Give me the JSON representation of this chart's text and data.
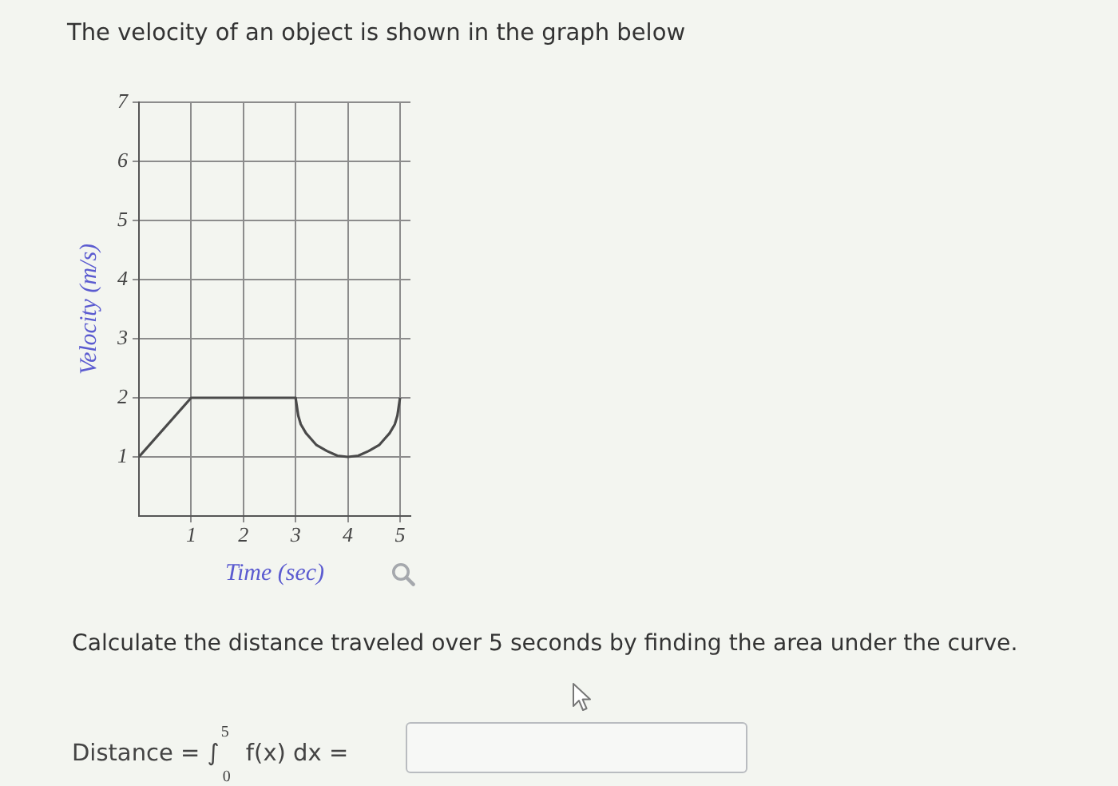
{
  "chart_data": {
    "type": "line",
    "title": "The velocity of an object is shown in the graph below",
    "xlabel": "Time (sec)",
    "ylabel": "Velocity (m/s)",
    "x": [
      0,
      1,
      3,
      3.05,
      3.1,
      3.2,
      3.3,
      3.4,
      3.5,
      3.6,
      3.8,
      4,
      4.2,
      4.4,
      4.5,
      4.6,
      4.7,
      4.8,
      4.9,
      4.95,
      5
    ],
    "values": [
      1,
      2,
      2,
      1.7,
      1.55,
      1.4,
      1.3,
      1.2,
      1.15,
      1.1,
      1.02,
      1,
      1.02,
      1.1,
      1.15,
      1.2,
      1.3,
      1.4,
      1.55,
      1.7,
      2
    ],
    "color": "#4a4a4a",
    "xlim": [
      0,
      5.2
    ],
    "ylim": [
      0,
      7
    ],
    "xticks": [
      1,
      2,
      3,
      4,
      5
    ],
    "yticks": [
      1,
      2,
      3,
      4,
      5,
      6,
      7
    ],
    "grid": true,
    "annotations": [
      "Calculate the distance traveled over 5 seconds by finding the area under the curve.",
      "Distance = ∫$_{0}$$^{5}$ f(x) dx ="
    ]
  }
}
